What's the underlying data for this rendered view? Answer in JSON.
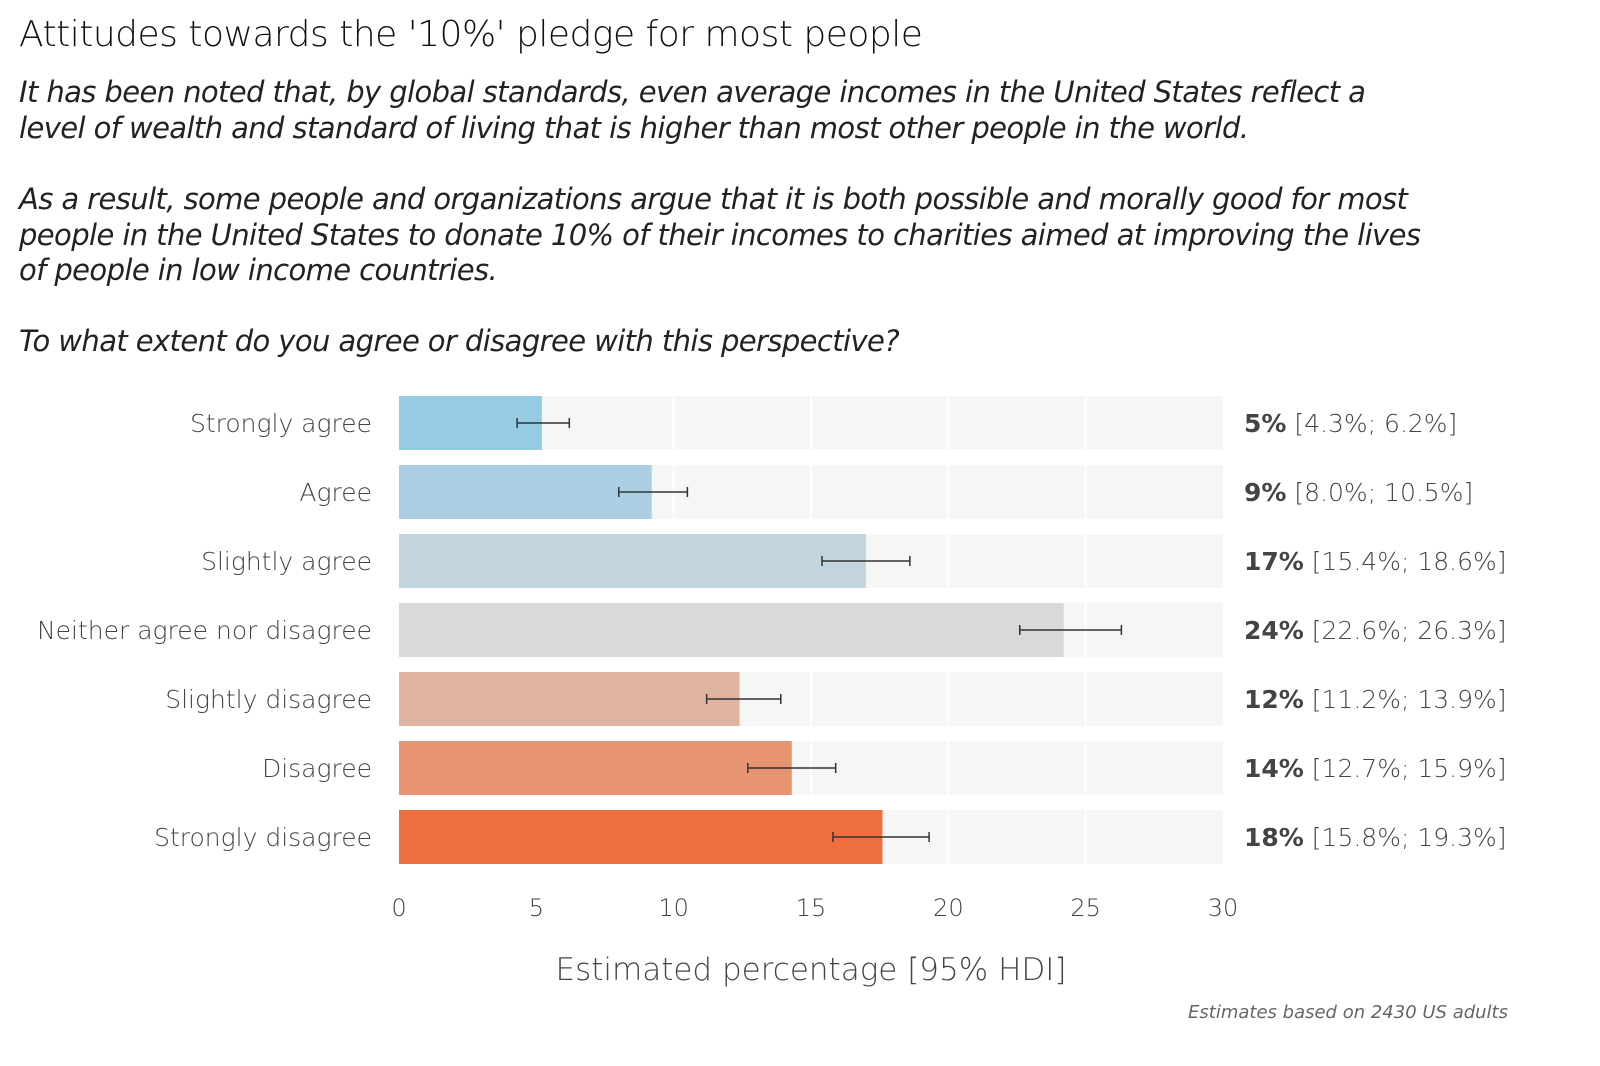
{
  "chart_data": {
    "type": "bar",
    "orientation": "horizontal",
    "title": "Attitudes towards the '10%' pledge for most people",
    "subtitle_lines": [
      "It has been noted that, by global standards, even average incomes in the United States reflect a",
      "level of wealth and standard of living that is higher than most other people in the world.",
      "As a result, some people and organizations argue that it is both possible and morally good for most",
      "people in the United States to donate 10% of their incomes to charities aimed at improving the lives",
      "of people in low income countries.",
      "To what extent do you agree or disagree with this perspective?"
    ],
    "categories": [
      "Strongly agree",
      "Agree",
      "Slightly agree",
      "Neither agree nor disagree",
      "Slightly disagree",
      "Disagree",
      "Strongly disagree"
    ],
    "values": [
      5.2,
      9.2,
      17.0,
      24.2,
      12.4,
      14.3,
      17.6
    ],
    "ci_low": [
      4.3,
      8.0,
      15.4,
      22.6,
      11.2,
      12.7,
      15.8
    ],
    "ci_high": [
      6.2,
      10.5,
      18.6,
      26.3,
      13.9,
      15.9,
      19.3
    ],
    "value_labels_bold": [
      "5%",
      "9%",
      "17%",
      "24%",
      "12%",
      "14%",
      "18%"
    ],
    "value_labels_ci": [
      "[4.3%; 6.2%]",
      "[8.0%; 10.5%]",
      "[15.4%; 18.6%]",
      "[22.6%; 26.3%]",
      "[11.2%; 13.9%]",
      "[12.7%; 15.9%]",
      "[15.8%; 19.3%]"
    ],
    "colors": [
      "#95cbe3",
      "#acceE2",
      "#c2d5de",
      "#d9d9d9",
      "#e0b4a3",
      "#e79473",
      "#ee6f3e"
    ],
    "xlim": [
      0,
      30
    ],
    "xticks": [
      "0",
      "5",
      "10",
      "15",
      "20",
      "25",
      "30"
    ],
    "xlabel": "Estimated percentage [95% HDI]",
    "ylabel": "",
    "grid": true,
    "note": "Estimates based on 2430 US adults"
  }
}
